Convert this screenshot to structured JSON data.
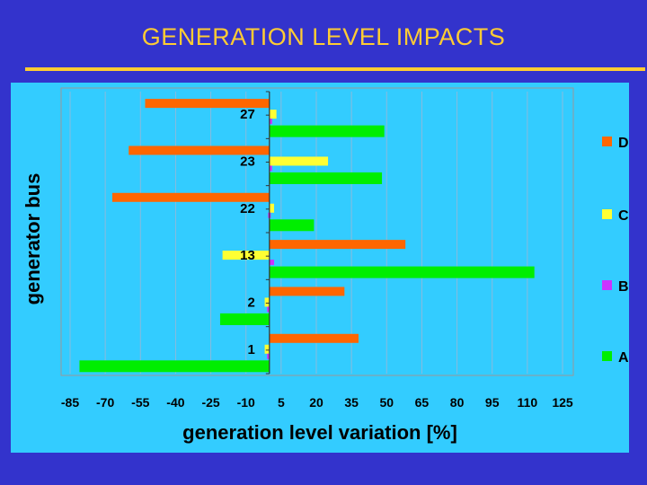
{
  "slide": {
    "title": "GENERATION LEVEL IMPACTS"
  },
  "colors": {
    "background": "#3333cc",
    "panel": "#33ccff",
    "title": "#ffcc33",
    "D": "#ff6600",
    "C": "#ffff33",
    "B": "#cc33ff",
    "A": "#00ee00"
  },
  "chart_data": {
    "type": "bar",
    "orientation": "horizontal",
    "title": "",
    "xlabel": "generation level variation [%]",
    "ylabel": "generator bus",
    "categories": [
      "27",
      "23",
      "22",
      "13",
      "2",
      "1"
    ],
    "xlim": [
      -85,
      125
    ],
    "xticks": [
      -85,
      -70,
      -55,
      -40,
      -25,
      -10,
      5,
      20,
      35,
      50,
      65,
      80,
      95,
      110,
      125
    ],
    "grid": true,
    "legend_position": "right",
    "series": [
      {
        "name": "D",
        "values": [
          -53,
          -60,
          -67,
          58,
          32,
          38
        ]
      },
      {
        "name": "C",
        "values": [
          3,
          25,
          2,
          -20,
          -2,
          -2
        ]
      },
      {
        "name": "B",
        "values": [
          1,
          1,
          0,
          2,
          -1,
          -1
        ]
      },
      {
        "name": "A",
        "values": [
          49,
          48,
          19,
          113,
          -21,
          -81
        ]
      }
    ],
    "legend_order": [
      "D",
      "C",
      "B",
      "A"
    ]
  }
}
